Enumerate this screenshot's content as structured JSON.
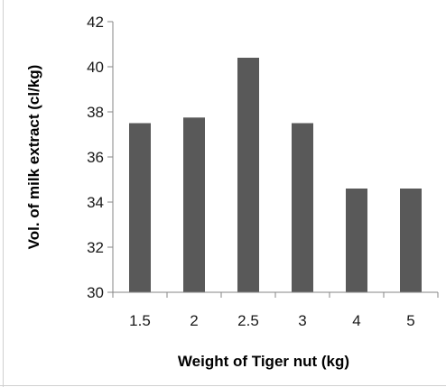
{
  "chart_data": {
    "type": "bar",
    "categories": [
      "1.5",
      "2",
      "2.5",
      "3",
      "4",
      "5"
    ],
    "values": [
      37.5,
      37.75,
      40.4,
      37.5,
      34.6,
      34.6
    ],
    "title": "",
    "xlabel": "Weight of Tiger nut (kg)",
    "ylabel": "Vol. of milk extract (cl/kg)",
    "ylim": [
      30,
      42
    ],
    "yticks": [
      30,
      32,
      34,
      36,
      38,
      40,
      42
    ],
    "ytick_labels": [
      "30",
      "32",
      "34",
      "36",
      "38",
      "40",
      "42"
    ],
    "grid": false,
    "legend": "none",
    "bar_color": "#595959",
    "axis_color": "#868686",
    "frame_color": "#d0d0d0"
  }
}
